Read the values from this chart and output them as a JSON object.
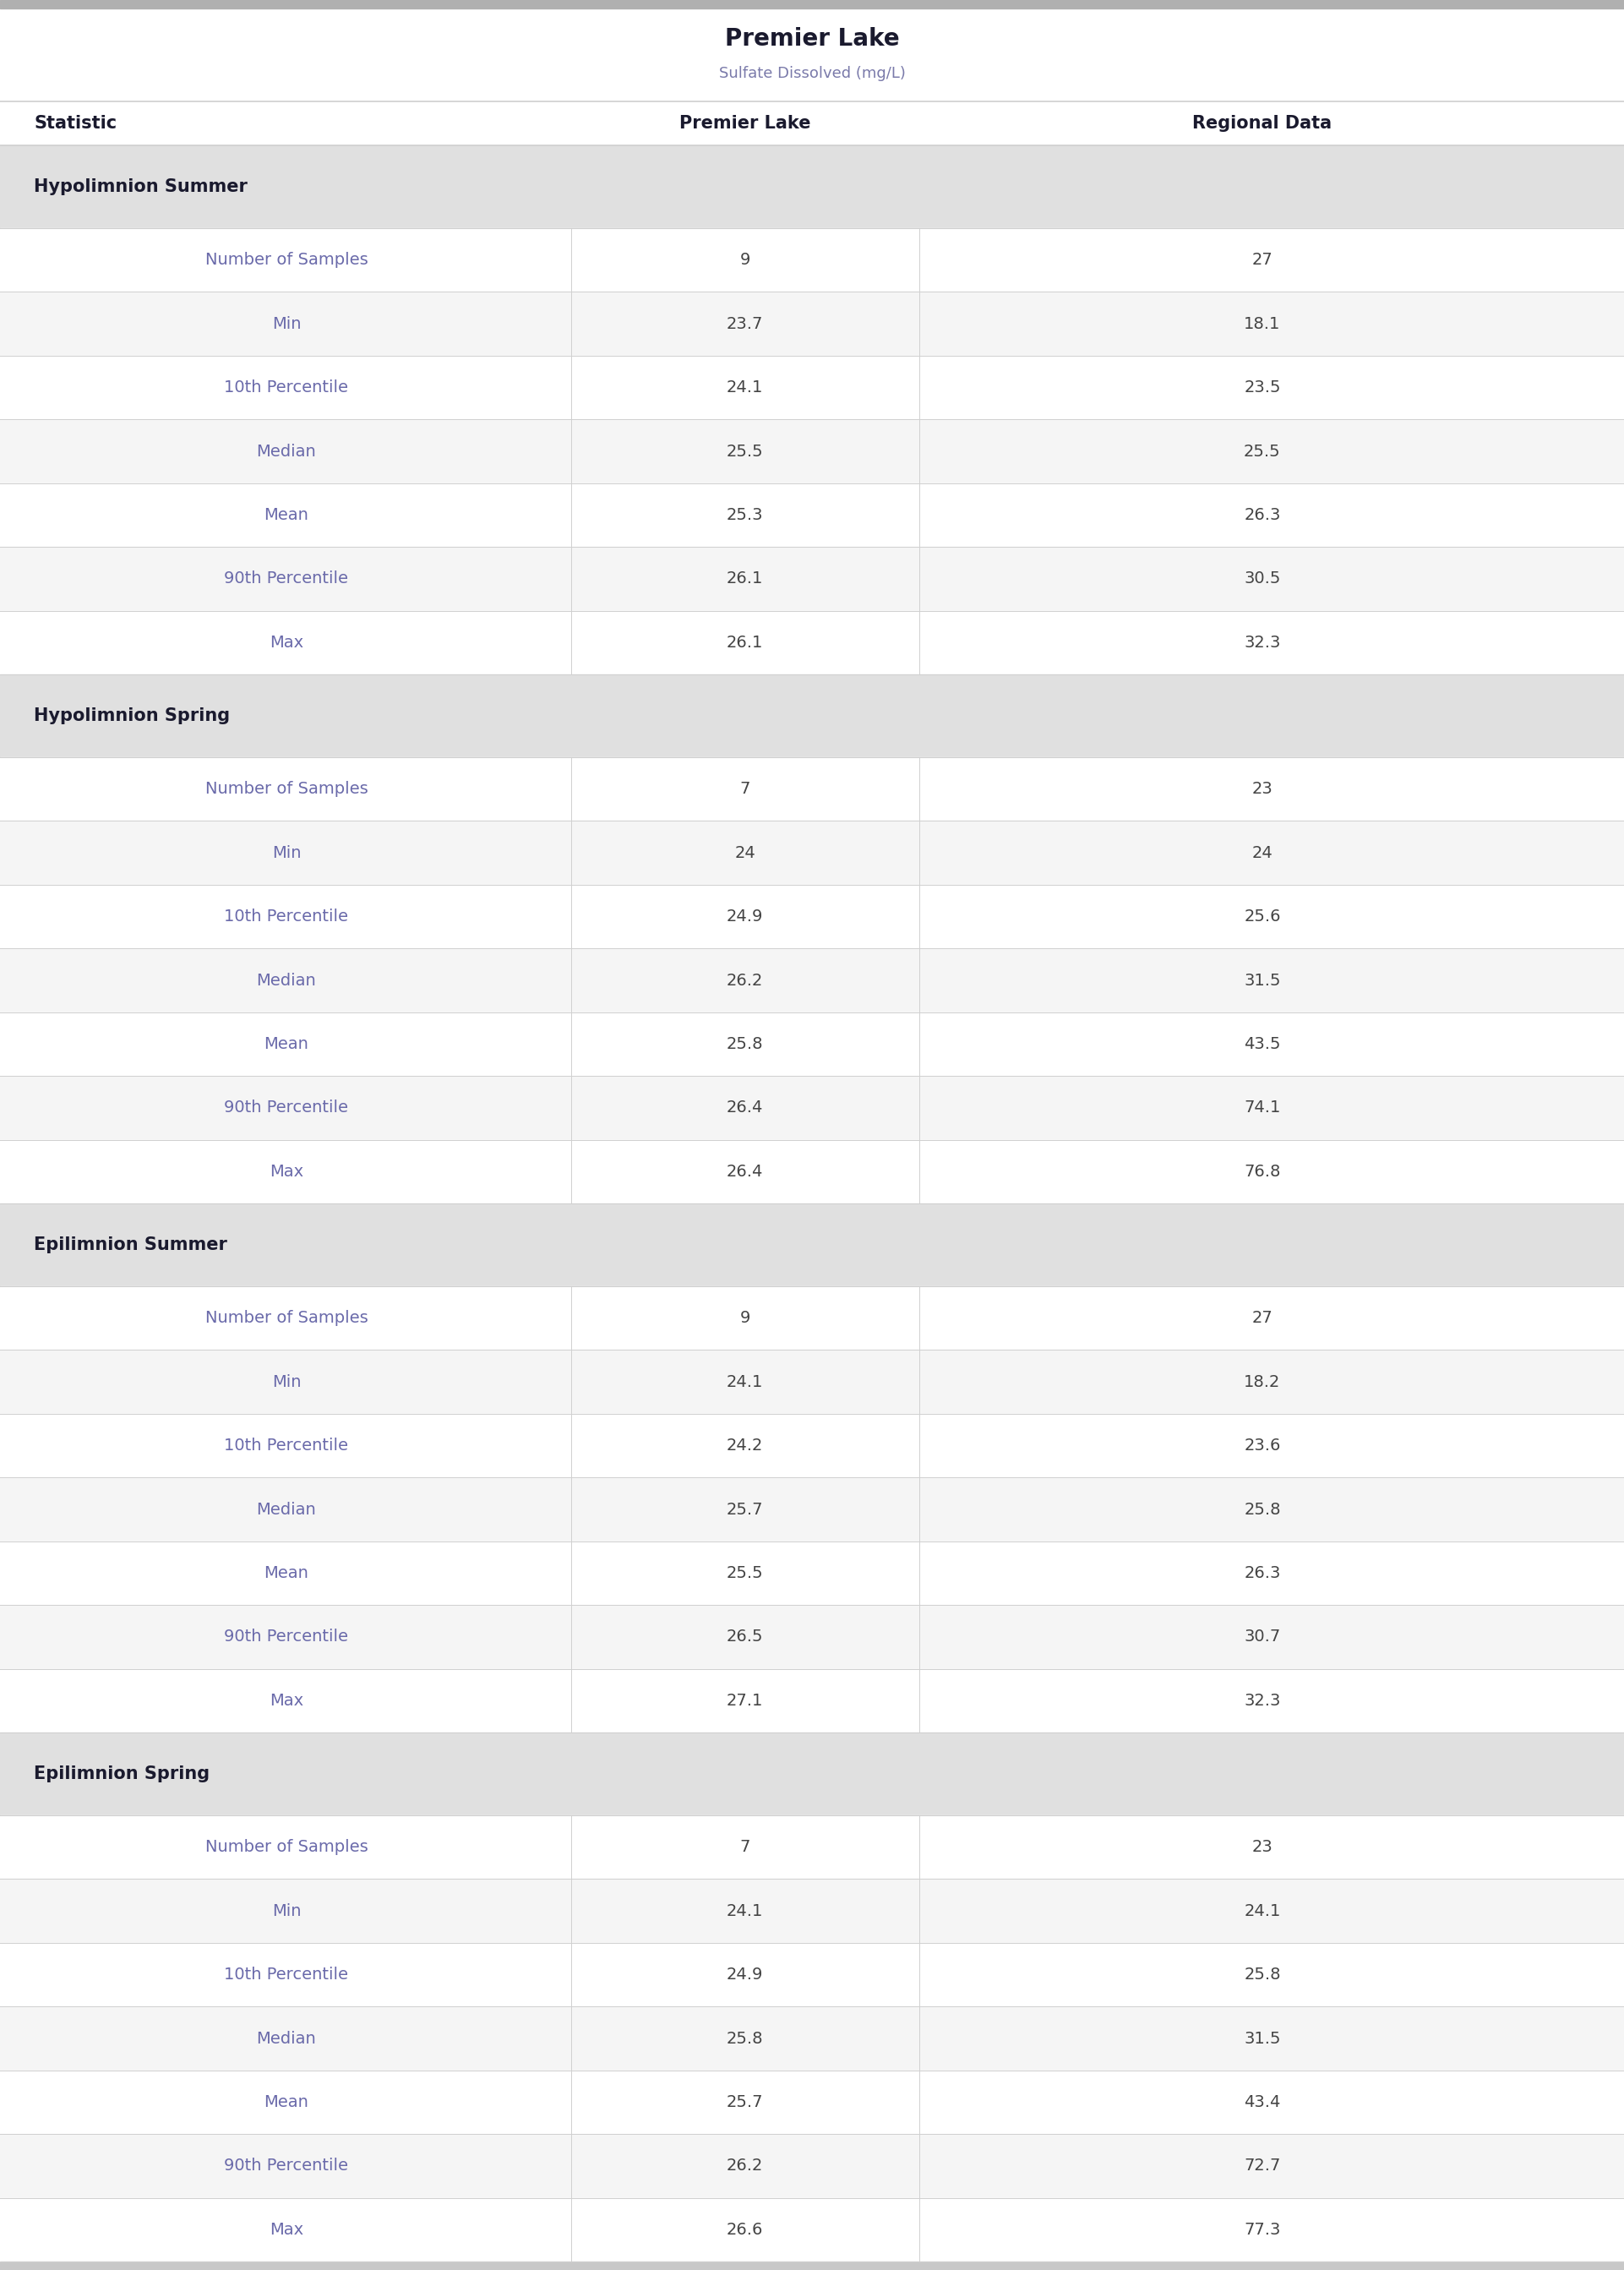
{
  "title": "Premier Lake",
  "subtitle": "Sulfate Dissolved (mg/L)",
  "col_headers": [
    "Statistic",
    "Premier Lake",
    "Regional Data"
  ],
  "sections": [
    {
      "header": "Hypolimnion Summer",
      "rows": [
        [
          "Number of Samples",
          "9",
          "27"
        ],
        [
          "Min",
          "23.7",
          "18.1"
        ],
        [
          "10th Percentile",
          "24.1",
          "23.5"
        ],
        [
          "Median",
          "25.5",
          "25.5"
        ],
        [
          "Mean",
          "25.3",
          "26.3"
        ],
        [
          "90th Percentile",
          "26.1",
          "30.5"
        ],
        [
          "Max",
          "26.1",
          "32.3"
        ]
      ]
    },
    {
      "header": "Hypolimnion Spring",
      "rows": [
        [
          "Number of Samples",
          "7",
          "23"
        ],
        [
          "Min",
          "24",
          "24"
        ],
        [
          "10th Percentile",
          "24.9",
          "25.6"
        ],
        [
          "Median",
          "26.2",
          "31.5"
        ],
        [
          "Mean",
          "25.8",
          "43.5"
        ],
        [
          "90th Percentile",
          "26.4",
          "74.1"
        ],
        [
          "Max",
          "26.4",
          "76.8"
        ]
      ]
    },
    {
      "header": "Epilimnion Summer",
      "rows": [
        [
          "Number of Samples",
          "9",
          "27"
        ],
        [
          "Min",
          "24.1",
          "18.2"
        ],
        [
          "10th Percentile",
          "24.2",
          "23.6"
        ],
        [
          "Median",
          "25.7",
          "25.8"
        ],
        [
          "Mean",
          "25.5",
          "26.3"
        ],
        [
          "90th Percentile",
          "26.5",
          "30.7"
        ],
        [
          "Max",
          "27.1",
          "32.3"
        ]
      ]
    },
    {
      "header": "Epilimnion Spring",
      "rows": [
        [
          "Number of Samples",
          "7",
          "23"
        ],
        [
          "Min",
          "24.1",
          "24.1"
        ],
        [
          "10th Percentile",
          "24.9",
          "25.8"
        ],
        [
          "Median",
          "25.8",
          "31.5"
        ],
        [
          "Mean",
          "25.7",
          "43.4"
        ],
        [
          "90th Percentile",
          "26.2",
          "72.7"
        ],
        [
          "Max",
          "26.6",
          "77.3"
        ]
      ]
    }
  ],
  "top_bar_color": "#b0b0b0",
  "section_header_bg": "#e0e0e0",
  "row_bg_white": "#ffffff",
  "row_bg_light": "#f5f5f5",
  "bottom_bar_color": "#c8c8c8",
  "divider_color": "#d0d0d0",
  "col_header_text_color": "#1a1a2e",
  "section_header_text_color": "#1a1a2e",
  "stat_text_color": "#6a6aaa",
  "value_text_color": "#444444",
  "title_color": "#1a1a2e",
  "subtitle_color": "#7a7aaa",
  "title_fontsize": 20,
  "subtitle_fontsize": 13,
  "col_header_fontsize": 15,
  "section_header_fontsize": 15,
  "stat_fontsize": 14,
  "value_fontsize": 14,
  "fig_width": 19.22,
  "fig_height": 26.86
}
